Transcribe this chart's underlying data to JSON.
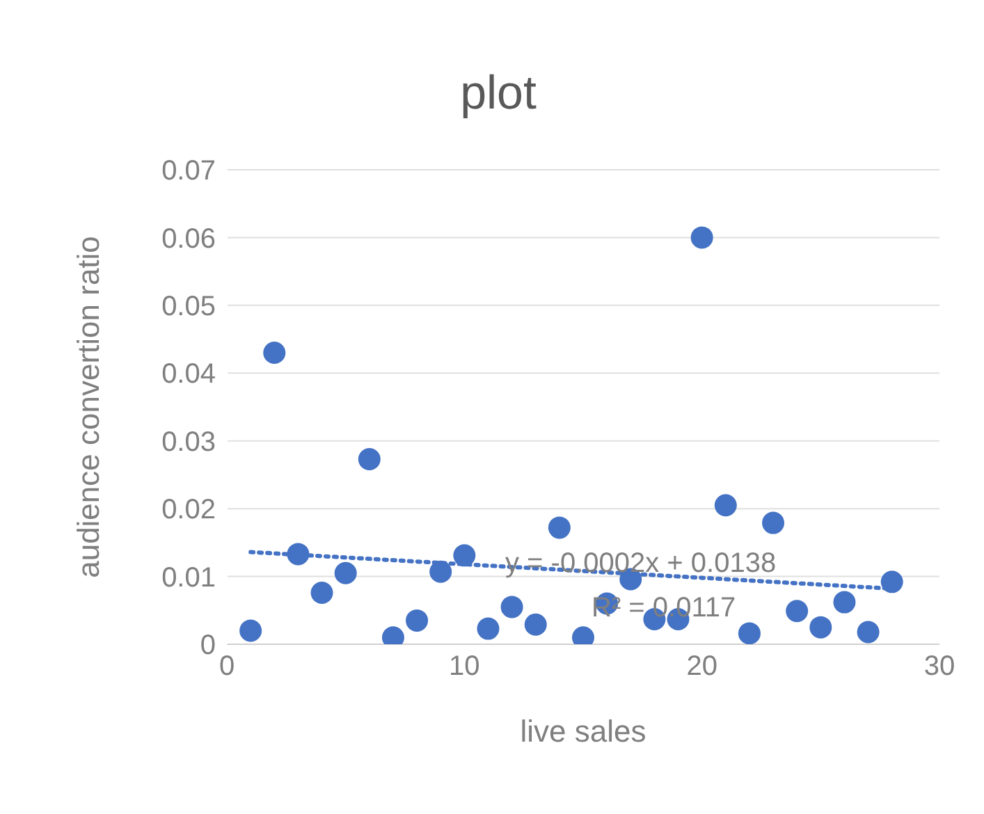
{
  "chart_data": {
    "type": "scatter",
    "title": "plot",
    "xlabel": "live sales",
    "ylabel": "audience convertion ratio",
    "x": [
      1,
      2,
      3,
      4,
      5,
      6,
      7,
      8,
      9,
      10,
      11,
      12,
      13,
      14,
      15,
      16,
      17,
      18,
      19,
      20,
      21,
      22,
      23,
      24,
      25,
      26,
      27,
      28
    ],
    "series": [
      {
        "color": "#4472c4",
        "values": [
          0.002,
          0.043,
          0.0133,
          0.0076,
          0.0105,
          0.0273,
          0.001,
          0.0035,
          0.0107,
          0.0131,
          0.0023,
          0.0055,
          0.0029,
          0.0172,
          0.001,
          0.006,
          0.0096,
          0.0037,
          0.0037,
          0.06,
          0.0205,
          0.0016,
          0.0179,
          0.0049,
          0.0025,
          0.0062,
          0.0018,
          0.0092
        ]
      },
      {
        "type": "line",
        "color": "#4472c4",
        "line_style": "dotted",
        "marker": "none",
        "x": [
          1,
          28
        ],
        "values": [
          0.0136,
          0.0082
        ]
      }
    ],
    "xlim": [
      0,
      30
    ],
    "xticks": [
      0,
      10,
      20,
      30
    ],
    "ylim": [
      0,
      0.07
    ],
    "yticks": [
      0,
      0.01,
      0.02,
      0.03,
      0.04,
      0.05,
      0.06,
      0.07
    ],
    "grid": "y",
    "marker": "circle",
    "annotations": [
      "y = -0.0002x + 0.0138",
      "R² = 0.0117"
    ]
  }
}
